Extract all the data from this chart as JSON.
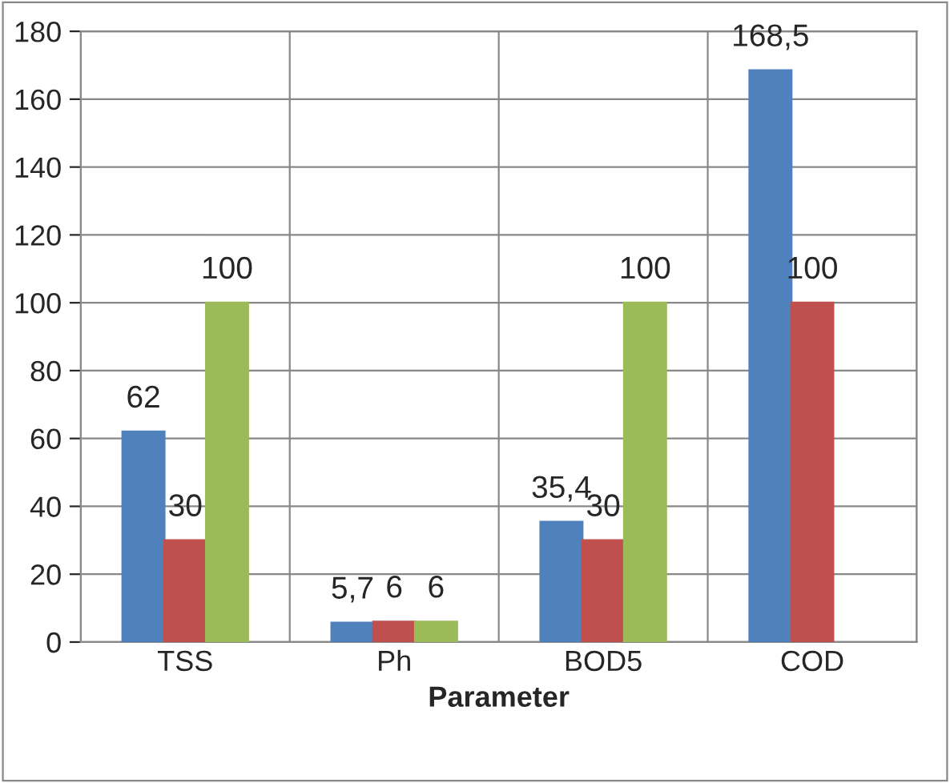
{
  "chart_data": {
    "type": "bar",
    "xlabel": "Parameter",
    "categories": [
      "TSS",
      "Ph",
      "BOD5",
      "COD"
    ],
    "series": [
      {
        "color": "#4f81bd",
        "values": [
          62,
          5.7,
          35.4,
          168.5
        ],
        "value_labels": [
          "62",
          "5,7",
          "35,4",
          "168,5"
        ]
      },
      {
        "color": "#c0504d",
        "values": [
          30,
          6,
          30,
          100
        ],
        "value_labels": [
          "30",
          "6",
          "30",
          "100"
        ]
      },
      {
        "color": "#9bbb59",
        "values": [
          100,
          6,
          100,
          null
        ],
        "value_labels": [
          "100",
          "6",
          "100",
          null
        ]
      }
    ],
    "ylim": [
      0,
      180
    ],
    "yticks": [
      0,
      20,
      40,
      60,
      80,
      100,
      120,
      140,
      160,
      180
    ],
    "grid": true,
    "legend": false
  }
}
